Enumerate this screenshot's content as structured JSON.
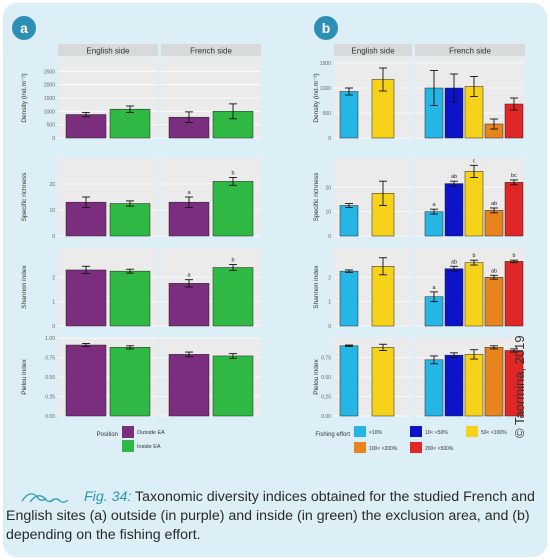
{
  "figure": {
    "panels": [
      "a",
      "b"
    ],
    "credit": "© Taormina, 2019",
    "caption_prefix": "Fig. 34:",
    "caption_text": " Taxonomic diversity indices obtained for the studied French and English sites (a) outside (in purple) and inside (in green) the exclusion area, and (b) depending on the fishing effort."
  },
  "colors": {
    "panel_badge": "#2e8fb6",
    "outside_ea": "#7b2e7e",
    "inside_ea": "#2fb844",
    "effort_lt10": "#26b6e6",
    "effort_10_50": "#0b14c9",
    "effort_50_100": "#f6d21b",
    "effort_100_200": "#e8841d",
    "effort_gt200": "#e02727",
    "strip": "#d9d9d9",
    "plot_bg": "#ebebeb"
  },
  "chart_data": [
    {
      "panel": "a",
      "type": "bar",
      "facets": [
        "English side",
        "French side"
      ],
      "legend_title": "Position",
      "series": [
        {
          "name": "Outside EA",
          "color": "#7b2e7e"
        },
        {
          "name": "Inside EA",
          "color": "#2fb844"
        }
      ],
      "rows": [
        {
          "ylabel": "Density (ind.m⁻²)",
          "ylim": [
            0,
            3000
          ],
          "ticks": [
            "0",
            "500",
            "1000",
            "1500",
            "2000",
            "2500"
          ],
          "tick_values": [
            0,
            500,
            1000,
            1500,
            2000,
            2500
          ],
          "values": [
            [
              880,
              1080
            ],
            [
              780,
              1000
            ]
          ],
          "errors": [
            [
              80,
              120
            ],
            [
              200,
              280
            ]
          ],
          "letters": [
            [
              "",
              ""
            ],
            [
              "",
              ""
            ]
          ]
        },
        {
          "ylabel": "Specific richness",
          "ylim": [
            0,
            30
          ],
          "ticks": [
            "0",
            "10",
            "20"
          ],
          "tick_values": [
            0,
            10,
            20
          ],
          "values": [
            [
              13,
              12.5
            ],
            [
              13,
              21
            ]
          ],
          "errors": [
            [
              2,
              1
            ],
            [
              2,
              1.5
            ]
          ],
          "letters": [
            [
              "",
              ""
            ],
            [
              "a",
              "b"
            ]
          ]
        },
        {
          "ylabel": "Shannon index",
          "ylim": [
            0,
            3.2
          ],
          "ticks": [
            "0",
            "1",
            "2"
          ],
          "tick_values": [
            0,
            1,
            2
          ],
          "values": [
            [
              2.3,
              2.25
            ],
            [
              1.75,
              2.4
            ]
          ],
          "errors": [
            [
              0.15,
              0.08
            ],
            [
              0.15,
              0.12
            ]
          ],
          "letters": [
            [
              "",
              ""
            ],
            [
              "a",
              "b"
            ]
          ]
        },
        {
          "ylabel": "Pielou index",
          "ylim": [
            0,
            1.0
          ],
          "ticks": [
            "0.00",
            "0.25",
            "0.50",
            "0.75",
            "1.00"
          ],
          "tick_values": [
            0,
            0.25,
            0.5,
            0.75,
            1.0
          ],
          "values": [
            [
              0.91,
              0.88
            ],
            [
              0.79,
              0.77
            ]
          ],
          "errors": [
            [
              0.02,
              0.02
            ],
            [
              0.03,
              0.03
            ]
          ],
          "letters": [
            [
              "",
              ""
            ],
            [
              "",
              ""
            ]
          ]
        }
      ]
    },
    {
      "panel": "b",
      "type": "bar",
      "facets": [
        "English side",
        "French side"
      ],
      "legend_title": "Fishing effort",
      "series": [
        {
          "name": "<10%",
          "color": "#26b6e6"
        },
        {
          "name": "10< <50%",
          "color": "#0b14c9"
        },
        {
          "name": "50< <100%",
          "color": "#f6d21b"
        },
        {
          "name": "100< <200%",
          "color": "#e8841d"
        },
        {
          "name": "200< <500%",
          "color": "#e02727"
        }
      ],
      "english_groups": [
        "<10%",
        "50< <100%"
      ],
      "french_groups": [
        "<10%",
        "10< <50%",
        "50< <100%",
        "100< <200%",
        "200< <500%"
      ],
      "rows": [
        {
          "ylabel": "Density (ind.m⁻²)",
          "ylim": [
            0,
            1600
          ],
          "ticks": [
            "0",
            "500",
            "1000",
            "1500"
          ],
          "tick_values": [
            0,
            500,
            1000,
            1500
          ],
          "english": [
            930,
            1170
          ],
          "english_err": [
            70,
            230
          ],
          "french": [
            1000,
            1000,
            1030,
            280,
            680
          ],
          "french_err": [
            350,
            280,
            200,
            100,
            120
          ],
          "letters": [
            "",
            "",
            "",
            "",
            ""
          ]
        },
        {
          "ylabel": "Specific richness",
          "ylim": [
            0,
            32
          ],
          "ticks": [
            "0",
            "10",
            "20"
          ],
          "tick_values": [
            0,
            10,
            20
          ],
          "english": [
            12.5,
            17.5
          ],
          "english_err": [
            0.8,
            5
          ],
          "french": [
            10,
            21.5,
            26.5,
            10.5,
            22
          ],
          "french_err": [
            1,
            1,
            2.5,
            1,
            1
          ],
          "letters": [
            "a",
            "ab",
            "c",
            "ab",
            "bc"
          ]
        },
        {
          "ylabel": "Shannon index",
          "ylim": [
            0,
            3.2
          ],
          "ticks": [
            "0",
            "1",
            "2"
          ],
          "tick_values": [
            0,
            1,
            2
          ],
          "english": [
            2.25,
            2.45
          ],
          "english_err": [
            0.05,
            0.35
          ],
          "french": [
            1.2,
            2.35,
            2.6,
            2.0,
            2.65
          ],
          "french_err": [
            0.2,
            0.1,
            0.1,
            0.08,
            0.05
          ],
          "letters": [
            "a",
            "ab",
            "b",
            "ab",
            "b"
          ]
        },
        {
          "ylabel": "Pielou index",
          "ylim": [
            0,
            1.0
          ],
          "ticks": [
            "0.00",
            "0.25",
            "0.50",
            "0.75"
          ],
          "tick_values": [
            0,
            0.25,
            0.5,
            0.75
          ],
          "english": [
            0.9,
            0.88
          ],
          "english_err": [
            0.01,
            0.04
          ],
          "french": [
            0.72,
            0.78,
            0.79,
            0.88,
            0.84
          ],
          "french_err": [
            0.05,
            0.03,
            0.06,
            0.02,
            0.02
          ],
          "letters": [
            "",
            "",
            "",
            "",
            ""
          ]
        }
      ]
    }
  ]
}
